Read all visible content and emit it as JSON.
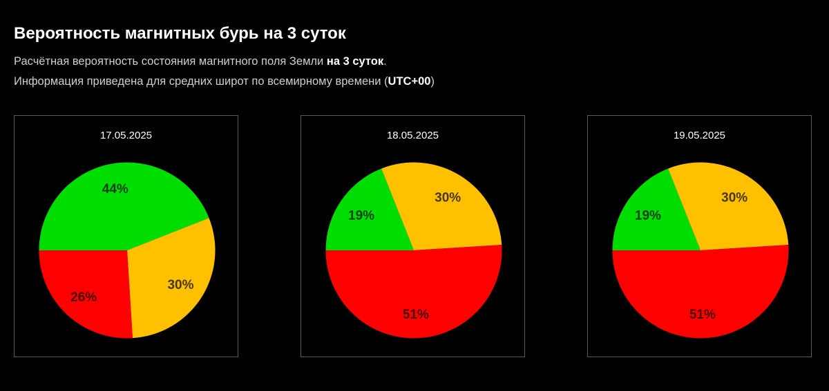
{
  "header": {
    "title": "Вероятность магнитных бурь на 3 суток",
    "line1_prefix": "Расчётная вероятность состояния магнитного поля Земли ",
    "line1_bold": "на 3 суток",
    "line1_suffix": ".",
    "line2_prefix": "Информация приведена для средних широт по всемирному времени (",
    "line2_bold": "UTC+00",
    "line2_suffix": ")"
  },
  "colors": {
    "green": "#00dd00",
    "yellow": "#ffc000",
    "red": "#ff0000",
    "background": "#000000",
    "frame_border": "#5a5a5a"
  },
  "chart_data": [
    {
      "type": "pie",
      "title": "17.05.2025",
      "start_angle": "9 o'clock, clockwise",
      "categories": [
        "green",
        "yellow",
        "red"
      ],
      "values": [
        44,
        30,
        26
      ],
      "labels": [
        "44%",
        "30%",
        "26%"
      ],
      "colors": [
        "#00dd00",
        "#ffc000",
        "#ff0000"
      ]
    },
    {
      "type": "pie",
      "title": "18.05.2025",
      "start_angle": "9 o'clock, clockwise",
      "categories": [
        "green",
        "yellow",
        "red"
      ],
      "values": [
        19,
        30,
        51
      ],
      "labels": [
        "19%",
        "30%",
        "51%"
      ],
      "colors": [
        "#00dd00",
        "#ffc000",
        "#ff0000"
      ]
    },
    {
      "type": "pie",
      "title": "19.05.2025",
      "start_angle": "9 o'clock, clockwise",
      "categories": [
        "green",
        "yellow",
        "red"
      ],
      "values": [
        19,
        30,
        51
      ],
      "labels": [
        "19%",
        "30%",
        "51%"
      ],
      "colors": [
        "#00dd00",
        "#ffc000",
        "#ff0000"
      ]
    }
  ]
}
